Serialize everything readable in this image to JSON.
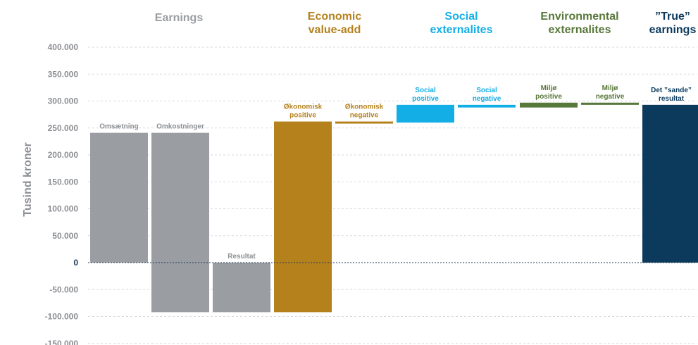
{
  "chart_data": {
    "type": "bar",
    "subtype": "waterfall",
    "ylabel": "Tusind kroner",
    "ylim": [
      -150000,
      400000
    ],
    "yticks": [
      400000,
      350000,
      300000,
      250000,
      200000,
      150000,
      100000,
      50000,
      0,
      -50000,
      -100000,
      -150000
    ],
    "ytick_labels": [
      "400.000",
      "350.000",
      "300.000",
      "250.000",
      "200.000",
      "150.000",
      "100.000",
      "50.000",
      "0",
      "-50.000",
      "-100.000",
      "-150.000"
    ],
    "grid": true,
    "groups": [
      {
        "title": "Earnings",
        "color": "#9a9da2"
      },
      {
        "title": "Economic\nvalue-add",
        "color": "#b5811c"
      },
      {
        "title": "Social\nexternalites",
        "color": "#14aee6"
      },
      {
        "title": "Environmental\nexternalites",
        "color": "#58773a"
      },
      {
        "title": "”True”\nearnings",
        "color": "#0b3a5d"
      }
    ],
    "bars": [
      {
        "label": "Omsætning",
        "group": 0,
        "start": 0,
        "end": 241000
      },
      {
        "label": "Omkostninger",
        "group": 0,
        "start": 241000,
        "end": -92000
      },
      {
        "label": "Resultat",
        "group": 0,
        "start": 0,
        "end": -92000
      },
      {
        "label": "Økonomisk\npositive",
        "group": 1,
        "start": -92000,
        "end": 262000
      },
      {
        "label": "Økonomisk\nnegative",
        "group": 1,
        "start": 262000,
        "end": 260000
      },
      {
        "label": "Social\npositive",
        "group": 2,
        "start": 260000,
        "end": 293000
      },
      {
        "label": "Social\nnegative",
        "group": 2,
        "start": 293000,
        "end": 288000
      },
      {
        "label": "Miljø\npositive",
        "group": 3,
        "start": 288000,
        "end": 297000
      },
      {
        "label": "Miljø\nnegative",
        "group": 3,
        "start": 297000,
        "end": 293000
      },
      {
        "label": "Det ”sande”\nresultat",
        "group": 4,
        "start": 0,
        "end": 293000
      }
    ]
  }
}
